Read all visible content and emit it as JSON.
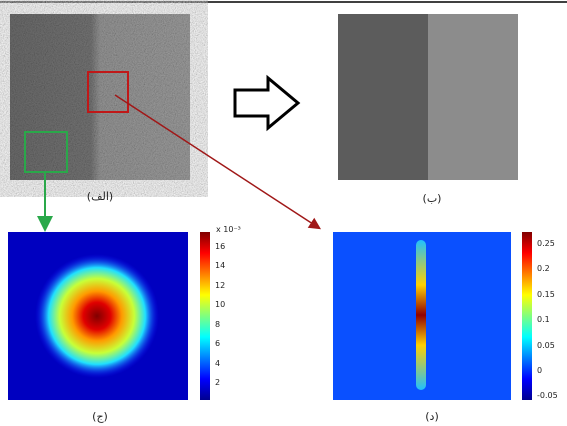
{
  "panels": [
    {
      "label": "(الف)"
    },
    {
      "label": "(ب)"
    },
    {
      "label": "(ج)",
      "colorbar": {
        "exponent": "x 10⁻³",
        "ticks": [
          "16",
          "14",
          "12",
          "10",
          "8",
          "6",
          "4",
          "2"
        ]
      }
    },
    {
      "label": "(د)",
      "colorbar": {
        "ticks": [
          "0.25",
          "0.2",
          "0.15",
          "0.1",
          "0.05",
          "0",
          "-0.05"
        ]
      }
    }
  ]
}
